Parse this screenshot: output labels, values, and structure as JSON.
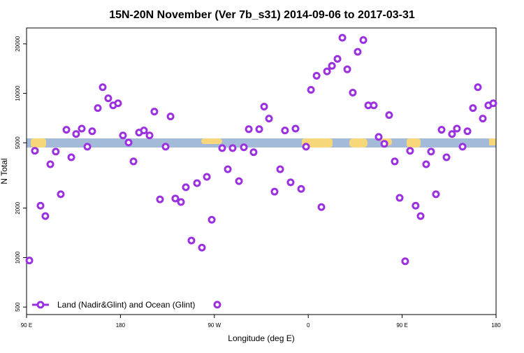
{
  "chart_data": {
    "type": "scatter",
    "title": "15N-20N November (Ver 7b_s31)   2014-09-06 to 2017-03-31",
    "x_label": "Longitude (deg E)",
    "y_label": "N Total",
    "yscale": "log",
    "legend": "bottom-left",
    "xlim": [
      90,
      540
    ],
    "ylim": [
      450,
      25000
    ],
    "xticks": [
      {
        "value": 90,
        "label": "90 E"
      },
      180,
      {
        "value": 270,
        "label": "90 W"
      },
      {
        "value": 360,
        "label": "0"
      },
      {
        "value": 450,
        "label": "90 E"
      },
      {
        "value": 540,
        "label": "180"
      }
    ],
    "yticks": [
      500,
      1000,
      2000,
      5000,
      10000,
      20000
    ],
    "series": [
      {
        "name": "Land (Nadir&Glint) and Ocean (Glint)",
        "color": "#9b30e0",
        "x": [
          92.7,
          98,
          103.4,
          108,
          112.8,
          118,
          122.8,
          128.2,
          132.9,
          137.5,
          142.9,
          148.3,
          152.9,
          158.3,
          163,
          168.3,
          173,
          177.7,
          182.4,
          187.8,
          192.5,
          197.8,
          202.5,
          207.9,
          212.5,
          217.9,
          223.3,
          228,
          232.6,
          238,
          242.7,
          248,
          253.4,
          258.1,
          262.8,
          267.5,
          272.8,
          277.5,
          282.9,
          287.5,
          293.6,
          298.3,
          303,
          307.6,
          313,
          317.7,
          322.4,
          327.7,
          333.1,
          337.7,
          343.1,
          347.8,
          353.2,
          357.9,
          362.6,
          368,
          372.6,
          378,
          382.7,
          388,
          392.7,
          397.4,
          402.7,
          407.4,
          412.8,
          417.5,
          422.8,
          427.5,
          432.9,
          437.5,
          442.9,
          447.6,
          452.9,
          457.6,
          462.9,
          467.7,
          473,
          477.7,
          482.4,
          487.8,
          492.5,
          497.8,
          502.5,
          507.9,
          512.6,
          517.9,
          522.6,
          527.3,
          532.6,
          537.3
        ],
        "values": [
          960,
          4470,
          2070,
          1790,
          3700,
          4420,
          2430,
          6000,
          4080,
          5650,
          6100,
          4730,
          5880,
          8130,
          10900,
          9330,
          8450,
          8700,
          5540,
          5020,
          3850,
          5770,
          5940,
          5540,
          7740,
          2260,
          4730,
          7230,
          2290,
          2180,
          2680,
          1270,
          2840,
          1150,
          3100,
          1700,
          517,
          4640,
          3450,
          4640,
          2920,
          4690,
          6050,
          4380,
          6050,
          8300,
          7020,
          2520,
          3450,
          5940,
          2870,
          6100,
          2620,
          4730,
          10500,
          12800,
          2030,
          13600,
          14700,
          16200,
          21800,
          14000,
          10100,
          17900,
          21100,
          8450,
          8450,
          5430,
          4930,
          7370,
          3850,
          2310,
          950,
          4470,
          2070,
          1790,
          3700,
          4420,
          2430,
          6000,
          4080,
          5650,
          6100,
          4730,
          5880,
          8130,
          10900,
          7020,
          8450,
          8700
        ]
      }
    ]
  }
}
